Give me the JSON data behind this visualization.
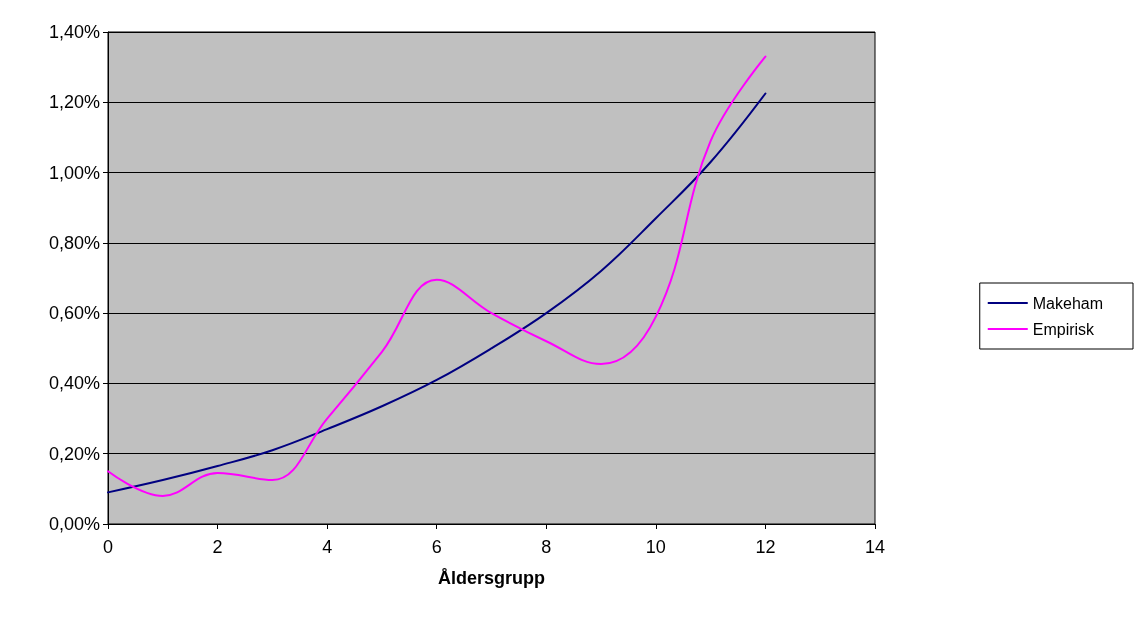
{
  "chart_data": {
    "type": "line",
    "xlabel": "Åldersgrupp",
    "x": [
      0,
      1,
      2,
      3,
      4,
      5,
      6,
      7,
      8,
      9,
      10,
      11,
      12
    ],
    "series": [
      {
        "name": "Makeham",
        "color": "#000080",
        "values": [
          0.09,
          0.125,
          0.165,
          0.21,
          0.27,
          0.335,
          0.41,
          0.5,
          0.6,
          0.72,
          0.87,
          1.03,
          1.225
        ]
      },
      {
        "name": "Empirisk",
        "color": "#ff00ff",
        "values": [
          0.15,
          0.08,
          0.145,
          0.125,
          0.3,
          0.49,
          0.695,
          0.6,
          0.52,
          0.455,
          0.59,
          1.09,
          1.33
        ]
      }
    ],
    "xlim": [
      0,
      14
    ],
    "xticks": [
      0,
      2,
      4,
      6,
      8,
      10,
      12,
      14
    ],
    "ylim": [
      0,
      1.4
    ],
    "yticks": [
      {
        "value": 0,
        "label": "0,00%"
      },
      {
        "value": 0.2,
        "label": "0,20%"
      },
      {
        "value": 0.4,
        "label": "0,40%"
      },
      {
        "value": 0.6,
        "label": "0,60%"
      },
      {
        "value": 0.8,
        "label": "0,80%"
      },
      {
        "value": 1.0,
        "label": "1,00%"
      },
      {
        "value": 1.2,
        "label": "1,20%"
      },
      {
        "value": 1.4,
        "label": "1,40%"
      }
    ],
    "grid": "y",
    "legend": "right",
    "marker": "none",
    "line_style": "solid"
  }
}
